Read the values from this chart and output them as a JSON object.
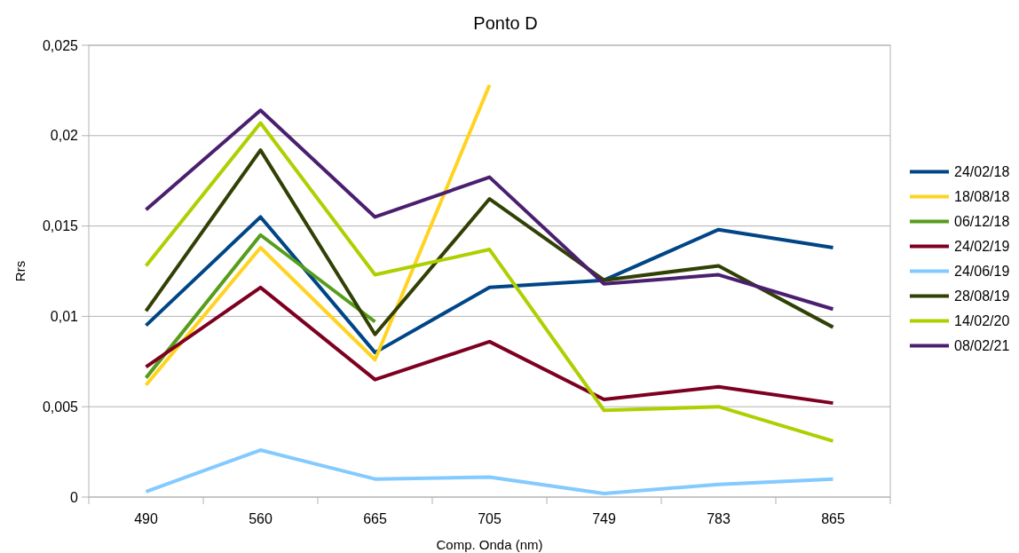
{
  "chart_data": {
    "type": "line",
    "title": "Ponto D",
    "xlabel": "Comp. Onda (nm)",
    "ylabel": "Rrs",
    "categories": [
      "490",
      "560",
      "665",
      "705",
      "749",
      "783",
      "865"
    ],
    "series": [
      {
        "name": "24/02/18",
        "color": "#004586",
        "values": [
          0.0095,
          0.0155,
          0.008,
          0.0116,
          0.012,
          0.0148,
          0.0138
        ]
      },
      {
        "name": "18/08/18",
        "color": "#ffd320",
        "values": [
          0.0062,
          0.0138,
          0.0076,
          0.0228,
          null,
          null,
          null
        ]
      },
      {
        "name": "06/12/18",
        "color": "#579d1c",
        "values": [
          0.0066,
          0.0145,
          0.0097,
          null,
          null,
          null,
          null
        ]
      },
      {
        "name": "24/02/19",
        "color": "#7e0021",
        "values": [
          0.0072,
          0.0116,
          0.0065,
          0.0086,
          0.0054,
          0.0061,
          0.0052
        ]
      },
      {
        "name": "24/06/19",
        "color": "#83caff",
        "values": [
          0.0003,
          0.0026,
          0.001,
          0.0011,
          0.0002,
          0.0007,
          0.001
        ]
      },
      {
        "name": "28/08/19",
        "color": "#314004",
        "values": [
          0.0103,
          0.0192,
          0.009,
          0.0165,
          0.012,
          0.0128,
          0.0094
        ]
      },
      {
        "name": "14/02/20",
        "color": "#aecf00",
        "values": [
          0.0128,
          0.0207,
          0.0123,
          0.0137,
          0.0048,
          0.005,
          0.0031
        ]
      },
      {
        "name": "08/02/21",
        "color": "#4b1f6f",
        "values": [
          0.0159,
          0.0214,
          0.0155,
          0.0177,
          0.0118,
          0.0123,
          0.0104
        ]
      }
    ],
    "ylim": [
      0,
      0.025
    ],
    "yticks": [
      0,
      {
        "value": 0.005,
        "label": "0,005"
      },
      {
        "value": 0.01,
        "label": "0,01"
      },
      {
        "value": 0.015,
        "label": "0,015"
      },
      {
        "value": 0.02,
        "label": "0,02"
      },
      {
        "value": 0.025,
        "label": "0,025"
      }
    ],
    "grid": "y",
    "legend": "right",
    "marker": "none",
    "line_style": "solid"
  }
}
